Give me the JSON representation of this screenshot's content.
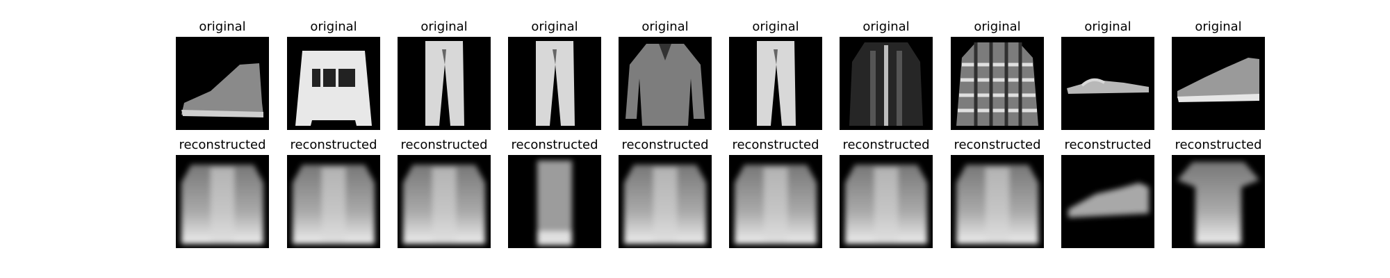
{
  "figure": {
    "rows": [
      {
        "row_type": "original",
        "items": [
          {
            "title": "original",
            "depiction": "ankle-boot"
          },
          {
            "title": "original",
            "depiction": "sweater-with-logo"
          },
          {
            "title": "original",
            "depiction": "trousers"
          },
          {
            "title": "original",
            "depiction": "trousers"
          },
          {
            "title": "original",
            "depiction": "shirt"
          },
          {
            "title": "original",
            "depiction": "trousers"
          },
          {
            "title": "original",
            "depiction": "coat"
          },
          {
            "title": "original",
            "depiction": "plaid-shirt"
          },
          {
            "title": "original",
            "depiction": "sandal"
          },
          {
            "title": "original",
            "depiction": "sneaker"
          }
        ]
      },
      {
        "row_type": "reconstructed",
        "items": [
          {
            "title": "reconstructed",
            "depiction": "blurry-top"
          },
          {
            "title": "reconstructed",
            "depiction": "blurry-top"
          },
          {
            "title": "reconstructed",
            "depiction": "blurry-top"
          },
          {
            "title": "reconstructed",
            "depiction": "blurry-trousers"
          },
          {
            "title": "reconstructed",
            "depiction": "blurry-top"
          },
          {
            "title": "reconstructed",
            "depiction": "blurry-top"
          },
          {
            "title": "reconstructed",
            "depiction": "blurry-top"
          },
          {
            "title": "reconstructed",
            "depiction": "blurry-top"
          },
          {
            "title": "reconstructed",
            "depiction": "blurry-sneaker"
          },
          {
            "title": "reconstructed",
            "depiction": "blurry-tshirt"
          }
        ]
      }
    ],
    "colors": {
      "background": "#ffffff",
      "image_background": "#000000"
    }
  }
}
